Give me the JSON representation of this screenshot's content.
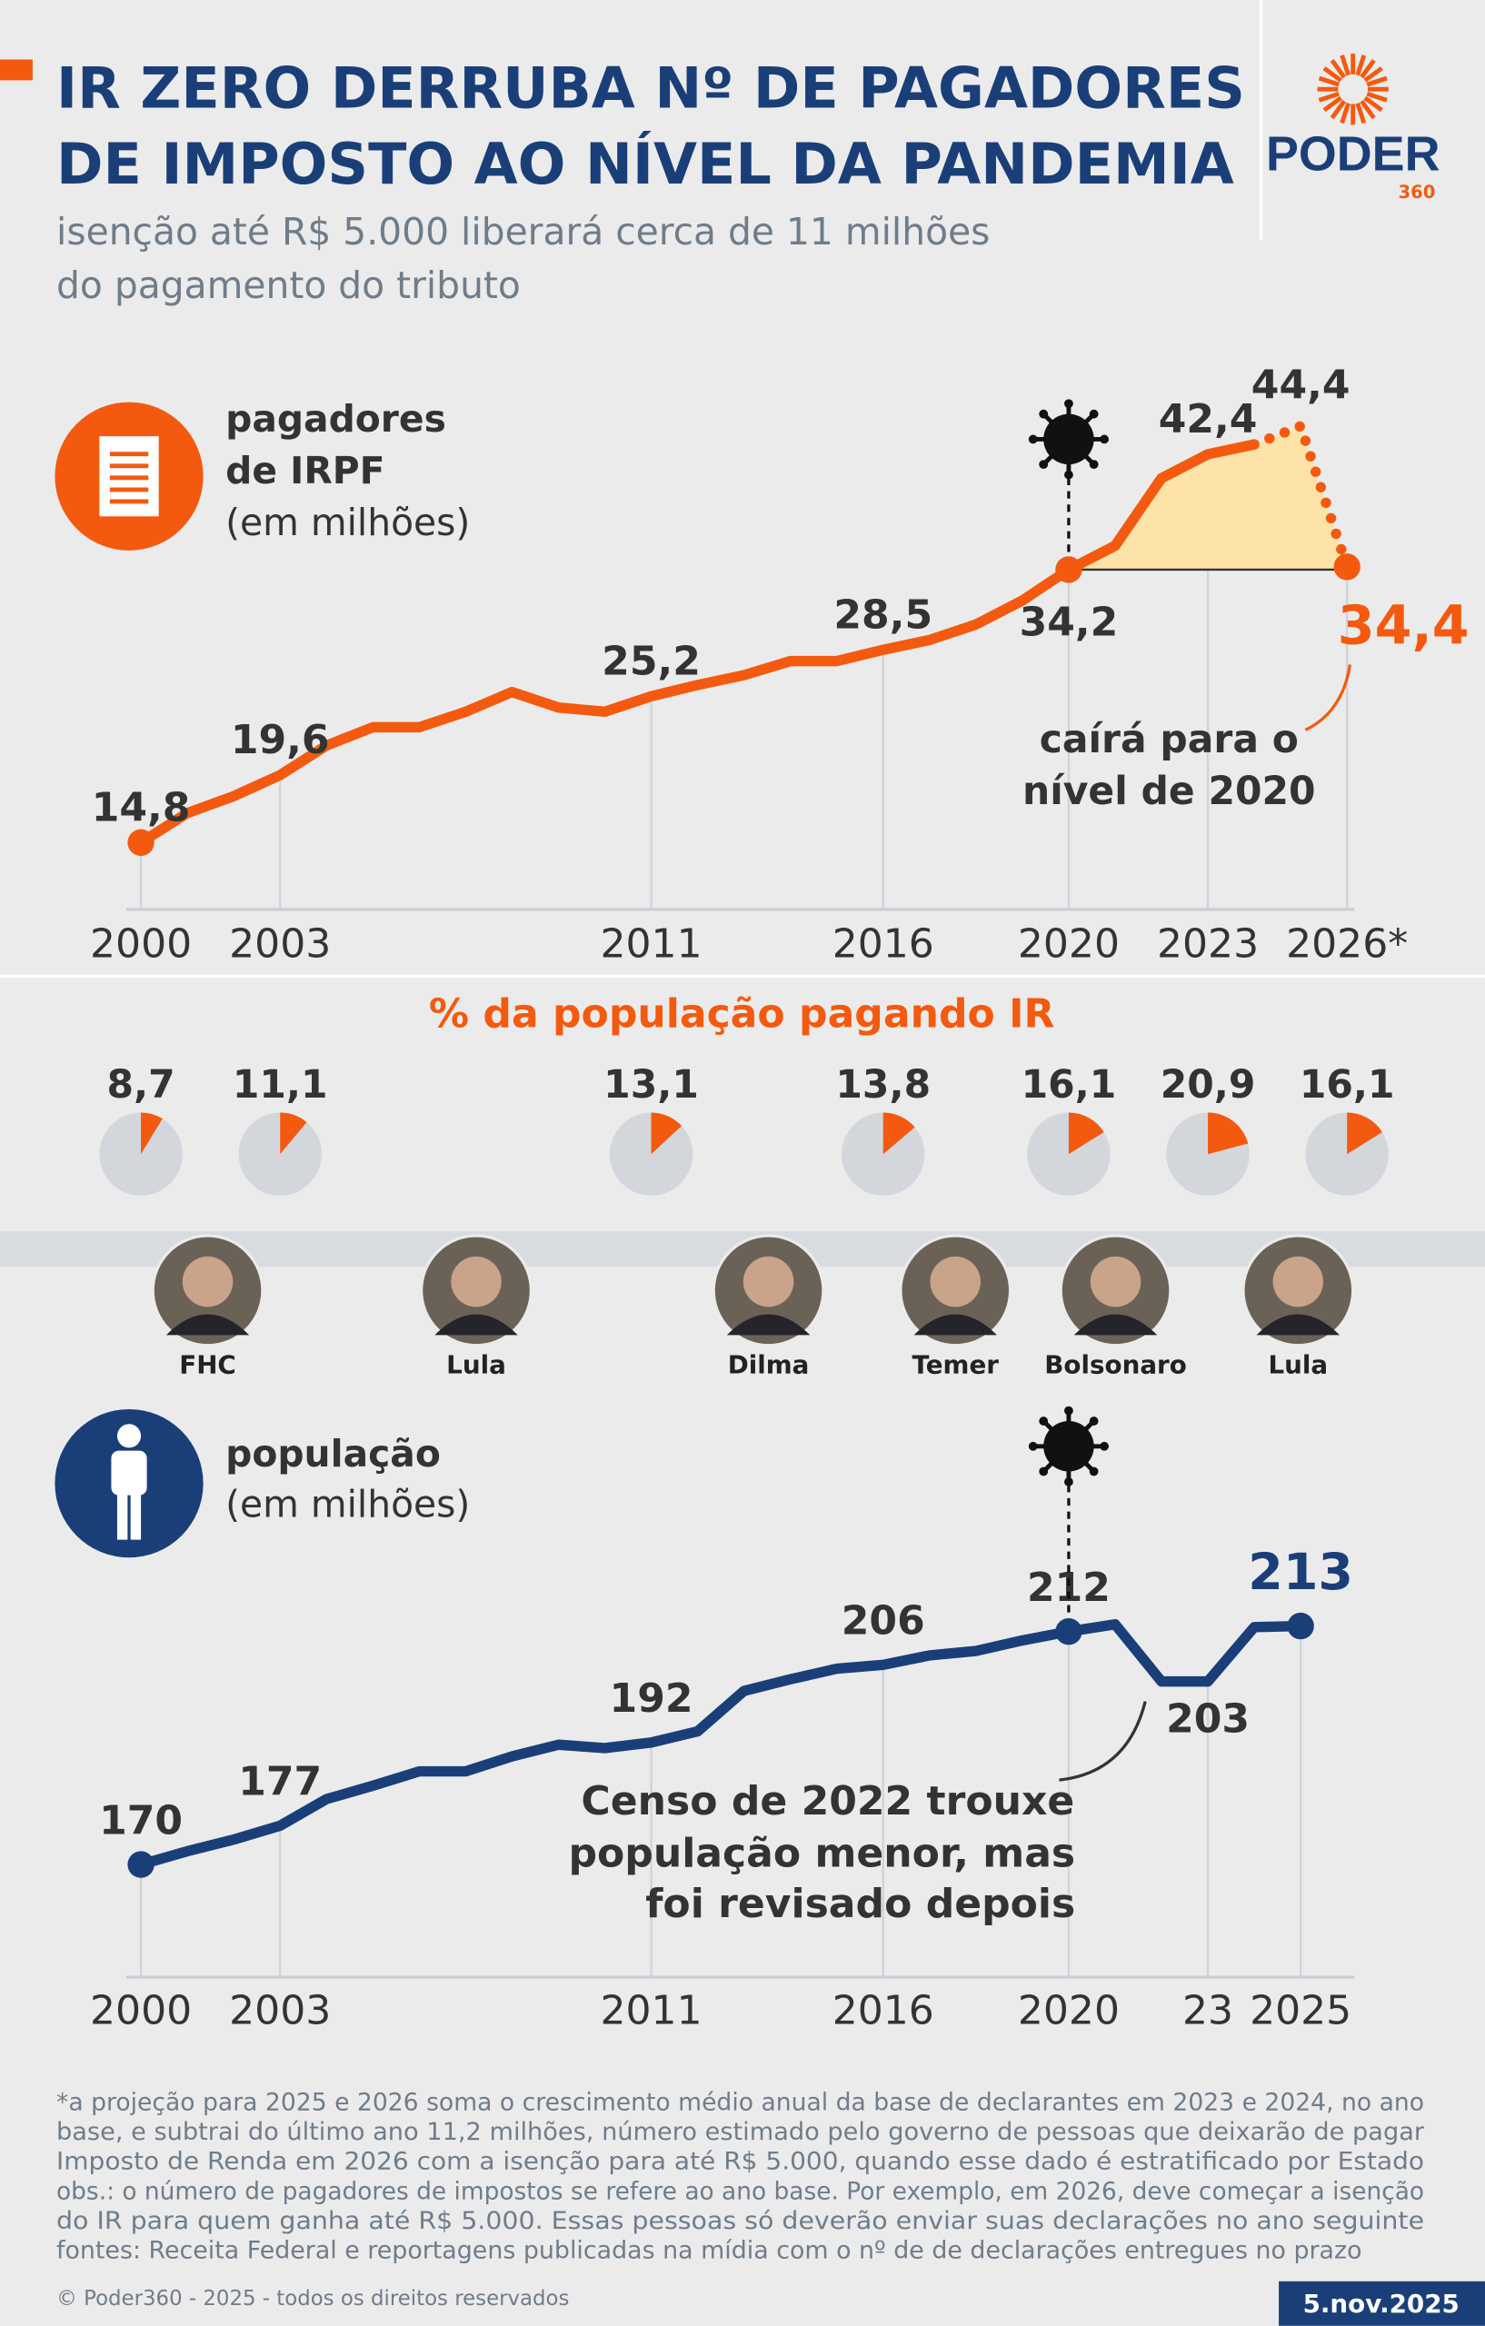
{
  "header": {
    "title_lines": [
      "IR ZERO DERRUBA Nº DE PAGADORES",
      "DE IMPOSTO AO NÍVEL DA PANDEMIA"
    ],
    "subtitle_lines": [
      "isenção até R$ 5.000 liberará cerca de 11 milhões",
      "do pagamento do tributo"
    ],
    "logo": "PODER",
    "logo_sub": "360"
  },
  "chart_data": [
    {
      "type": "line",
      "label_lines": [
        "pagadores",
        "de IRPF",
        "(em milhões)"
      ],
      "x": [
        2000,
        2001,
        2002,
        2003,
        2004,
        2005,
        2006,
        2007,
        2008,
        2009,
        2010,
        2011,
        2012,
        2013,
        2014,
        2015,
        2016,
        2017,
        2018,
        2019,
        2020,
        2021,
        2022,
        2023,
        2024,
        2025,
        2026
      ],
      "series": [
        {
          "color": "#f35a0f",
          "line_style": "solid",
          "values": [
            14.8,
            16.9,
            18.1,
            19.6,
            21.7,
            23.0,
            23.0,
            24.1,
            25.5,
            24.4,
            24.1,
            25.2,
            26.0,
            26.7,
            27.7,
            27.7,
            28.5,
            29.2,
            30.3,
            32.0,
            34.2,
            35.9,
            40.7,
            42.4,
            43.1,
            null,
            null
          ],
          "value_labels": [
            "14,8",
            null,
            null,
            "19,6",
            null,
            null,
            null,
            null,
            null,
            null,
            null,
            "25,2",
            null,
            null,
            null,
            null,
            "28,5",
            null,
            null,
            null,
            "34,2",
            null,
            null,
            "42,4",
            null,
            null,
            null
          ]
        },
        {
          "color": "#f35a0f",
          "line_style": "dotted",
          "values": [
            null,
            null,
            null,
            null,
            null,
            null,
            null,
            null,
            null,
            null,
            null,
            null,
            null,
            null,
            null,
            null,
            null,
            null,
            null,
            null,
            null,
            null,
            null,
            null,
            43.1,
            44.4,
            34.4
          ],
          "value_labels": [
            null,
            null,
            null,
            null,
            null,
            null,
            null,
            null,
            null,
            null,
            null,
            null,
            null,
            null,
            null,
            null,
            null,
            null,
            null,
            null,
            null,
            null,
            null,
            null,
            null,
            "44,4",
            "34,4"
          ]
        }
      ],
      "marker_x": [
        2000,
        2020,
        2026
      ],
      "fill_from_x": 2020,
      "fill_color": "#fde3a7",
      "xlim": [
        2000,
        2026
      ],
      "ylim": [
        10,
        46
      ],
      "xticks": [
        2000,
        2003,
        2011,
        2016,
        2020,
        2023,
        {
          "value": 2026,
          "label": "2026*"
        }
      ],
      "annotation_lines": [
        "caírá para o",
        "nível de 2020"
      ]
    },
    {
      "type": "pie",
      "title": "% da população pagando IR",
      "x": [
        2000,
        2003,
        2011,
        2016,
        2020,
        2023,
        2026
      ],
      "xlim": [
        2000,
        2026
      ],
      "values": [
        8.7,
        11.1,
        13.1,
        13.8,
        16.1,
        20.9,
        16.1
      ],
      "value_labels": [
        "8,7",
        "11,1",
        "13,1",
        "13,8",
        "16,1",
        "20,9",
        "16,1"
      ],
      "total": 100,
      "color": "#f35a0f",
      "rest_color": "#d3d7dc"
    },
    {
      "type": "line",
      "label_lines": [
        "população",
        "(em milhões)"
      ],
      "x": [
        2000,
        2001,
        2002,
        2003,
        2004,
        2005,
        2006,
        2007,
        2008,
        2009,
        2010,
        2011,
        2012,
        2013,
        2014,
        2015,
        2016,
        2017,
        2018,
        2019,
        2020,
        2021,
        2022,
        2023,
        2024,
        2025
      ],
      "series": [
        {
          "color": "#1a3f78",
          "line_style": "solid",
          "values": [
            170,
            172.4,
            174.5,
            177,
            181.8,
            184.2,
            186.8,
            186.8,
            189.5,
            191.6,
            191,
            192,
            194,
            201.3,
            203.4,
            205.3,
            206,
            207.7,
            208.5,
            210.4,
            212,
            213.3,
            203,
            203,
            212.8,
            213
          ],
          "value_labels": [
            "170",
            null,
            null,
            "177",
            null,
            null,
            null,
            null,
            null,
            null,
            null,
            "192",
            null,
            null,
            null,
            null,
            "206",
            null,
            null,
            null,
            "212",
            null,
            null,
            "203",
            null,
            "213"
          ]
        }
      ],
      "marker_x": [
        2000,
        2020,
        2025
      ],
      "xlim": [
        2000,
        2026
      ],
      "ylim": [
        160,
        220
      ],
      "xticks": [
        2000,
        2003,
        2011,
        2016,
        2020,
        {
          "value": 2023,
          "label": "23"
        },
        2025
      ],
      "annotation_lines": [
        "Censo de 2022 trouxe",
        "população menor, mas",
        "foi revisado depois"
      ]
    }
  ],
  "presidents": [
    {
      "name": "FHC"
    },
    {
      "name": "Lula"
    },
    {
      "name": "Dilma"
    },
    {
      "name": "Temer"
    },
    {
      "name": "Bolsonaro"
    },
    {
      "name": "Lula"
    }
  ],
  "footnotes": [
    "*a projeção para 2025 e 2026 soma o crescimento médio anual da base de declarantes em 2023 e 2024, no ano",
    "base, e subtrai do último ano 11,2 milhões, número estimado pelo governo de pessoas que deixarão de pagar",
    "Imposto de Renda em 2026 com a isenção para até R$ 5.000, quando esse dado é estratificado por Estado",
    "obs.: o número de pagadores de impostos se refere ao ano base. Por exemplo, em 2026, deve começar a isenção",
    "do IR para quem ganha até R$ 5.000. Essas pessoas só deverão enviar suas declarações no ano seguinte",
    "fontes: Receita Federal e reportagens publicadas na mídia com o nº de de declarações entregues no prazo"
  ],
  "footer": {
    "copyright": "© Poder360 - 2025 - todos os direitos reservados",
    "date": "5.nov.2025"
  }
}
